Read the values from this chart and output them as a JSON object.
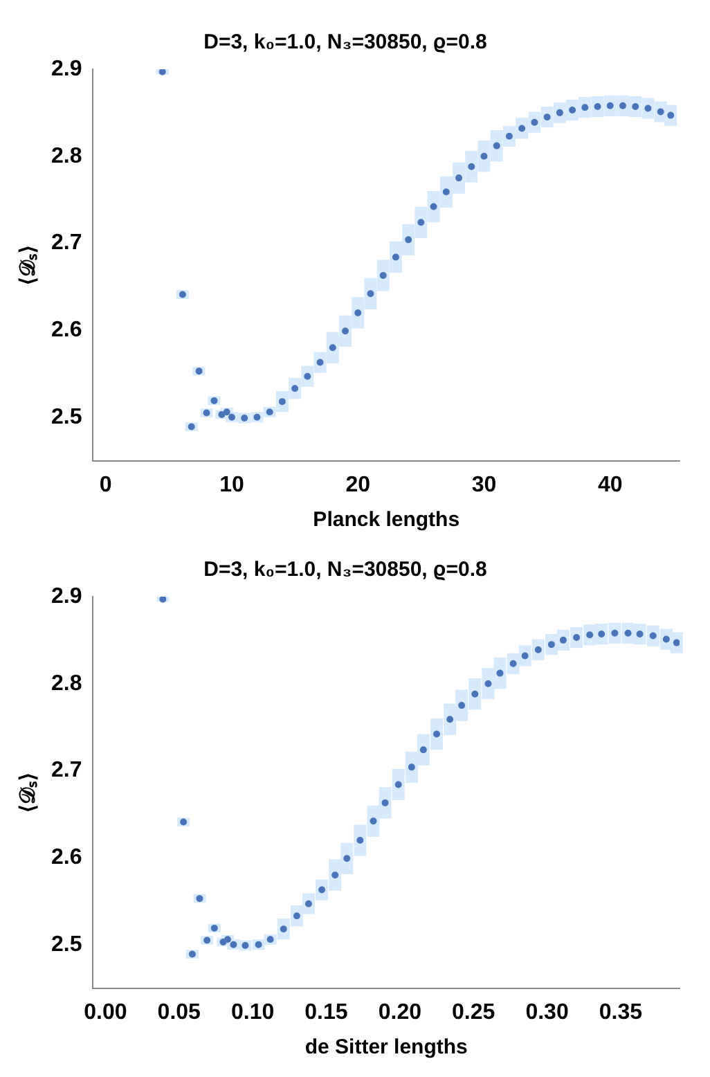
{
  "chart_data": [
    {
      "type": "scatter",
      "title": "D=3, k₀=1.0, N₃=30850, ϱ=0.8",
      "xlabel": "Planck lengths",
      "ylabel": "⟨𝒟ₛ⟩",
      "xlim": [
        -1,
        45.5
      ],
      "ylim": [
        2.45,
        2.9
      ],
      "xticks": [
        0,
        10,
        20,
        30,
        40
      ],
      "yticks": [
        2.5,
        2.6,
        2.7,
        2.8,
        2.9
      ],
      "grid": false,
      "marker": "circle",
      "x": [
        4.5,
        6.1,
        6.8,
        7.4,
        8.0,
        8.6,
        9.2,
        9.6,
        10,
        11,
        12,
        13,
        14,
        15,
        16,
        17,
        18,
        19,
        20,
        21,
        22,
        23,
        24,
        25,
        26,
        27,
        28,
        29,
        30,
        31,
        32,
        33,
        34,
        35,
        36,
        37,
        38,
        39,
        40,
        41,
        42,
        43,
        44,
        44.8
      ],
      "series": [
        {
          "color": "#4a74b8",
          "values": [
            2.897,
            2.641,
            2.489,
            2.553,
            2.505,
            2.519,
            2.503,
            2.506,
            2.5,
            2.499,
            2.5,
            2.506,
            2.518,
            2.533,
            2.547,
            2.563,
            2.58,
            2.599,
            2.62,
            2.642,
            2.663,
            2.684,
            2.704,
            2.724,
            2.742,
            2.759,
            2.775,
            2.788,
            2.8,
            2.812,
            2.823,
            2.832,
            2.839,
            2.845,
            2.85,
            2.853,
            2.856,
            2.857,
            2.858,
            2.858,
            2.857,
            2.855,
            2.851,
            2.847
          ],
          "errors": [
            0.003,
            0.005,
            0.005,
            0.005,
            0.005,
            0.005,
            0.005,
            0.005,
            0.006,
            0.006,
            0.006,
            0.006,
            0.012,
            0.012,
            0.012,
            0.012,
            0.018,
            0.018,
            0.018,
            0.018,
            0.018,
            0.018,
            0.018,
            0.018,
            0.018,
            0.018,
            0.018,
            0.018,
            0.018,
            0.018,
            0.012,
            0.012,
            0.012,
            0.012,
            0.012,
            0.012,
            0.012,
            0.012,
            0.012,
            0.012,
            0.012,
            0.012,
            0.012,
            0.012
          ]
        }
      ]
    },
    {
      "type": "scatter",
      "title": "D=3, k₀=1.0, N₃=30850, ϱ=0.8",
      "xlabel": "de Sitter lengths",
      "ylabel": "⟨𝒟ₛ⟩",
      "xlim": [
        -0.0084,
        0.39
      ],
      "ylim": [
        2.45,
        2.9
      ],
      "xticks": [
        {
          "value": 0,
          "label": "0.00"
        },
        0.05,
        {
          "value": 0.1,
          "label": "0.10"
        },
        0.15,
        {
          "value": 0.2,
          "label": "0.20"
        },
        0.25,
        {
          "value": 0.3,
          "label": "0.30"
        },
        0.35
      ],
      "yticks": [
        2.5,
        2.6,
        2.7,
        2.8,
        2.9
      ],
      "grid": false,
      "marker": "circle",
      "x": [
        0.039,
        0.053,
        0.059,
        0.064,
        0.069,
        0.074,
        0.08,
        0.083,
        0.087,
        0.095,
        0.104,
        0.112,
        0.121,
        0.13,
        0.138,
        0.147,
        0.156,
        0.164,
        0.173,
        0.182,
        0.19,
        0.199,
        0.208,
        0.216,
        0.225,
        0.234,
        0.242,
        0.251,
        0.26,
        0.268,
        0.277,
        0.285,
        0.294,
        0.303,
        0.311,
        0.32,
        0.329,
        0.337,
        0.346,
        0.355,
        0.363,
        0.372,
        0.381,
        0.388
      ],
      "series": [
        {
          "color": "#4a74b8",
          "values": [
            2.897,
            2.641,
            2.489,
            2.553,
            2.505,
            2.519,
            2.503,
            2.506,
            2.5,
            2.499,
            2.5,
            2.506,
            2.518,
            2.533,
            2.547,
            2.563,
            2.58,
            2.599,
            2.62,
            2.642,
            2.663,
            2.684,
            2.704,
            2.724,
            2.742,
            2.759,
            2.775,
            2.788,
            2.8,
            2.812,
            2.823,
            2.832,
            2.839,
            2.845,
            2.85,
            2.853,
            2.856,
            2.857,
            2.858,
            2.858,
            2.857,
            2.855,
            2.851,
            2.847
          ],
          "errors": [
            0.003,
            0.005,
            0.005,
            0.005,
            0.005,
            0.005,
            0.005,
            0.005,
            0.006,
            0.006,
            0.006,
            0.006,
            0.012,
            0.012,
            0.012,
            0.012,
            0.018,
            0.018,
            0.018,
            0.018,
            0.018,
            0.018,
            0.018,
            0.018,
            0.018,
            0.018,
            0.018,
            0.018,
            0.018,
            0.018,
            0.012,
            0.012,
            0.012,
            0.012,
            0.012,
            0.012,
            0.012,
            0.012,
            0.012,
            0.012,
            0.012,
            0.012,
            0.012,
            0.012
          ]
        }
      ]
    }
  ]
}
